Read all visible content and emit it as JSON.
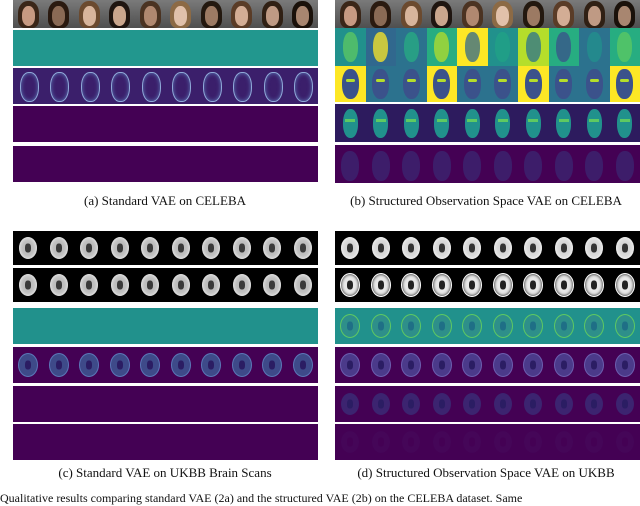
{
  "captions": {
    "a": "(a) Standard VAE on CELEBA",
    "b": "(b) Structured Observation Space VAE on CELEBA",
    "c": "(c) Standard VAE on UKBB Brain Scans",
    "d": "(d) Structured Observation Space VAE on UKBB"
  },
  "figure_caption": "Qualitative results comparing standard VAE (2a) and the structured VAE (2b) on the CELEBA dataset. Same",
  "colors": {
    "viridis_teal": "#21918c",
    "viridis_purple": "#440154",
    "viridis_yellow": "#fde725",
    "viridis_green": "#5ec962",
    "viridis_blue": "#3b528b"
  }
}
